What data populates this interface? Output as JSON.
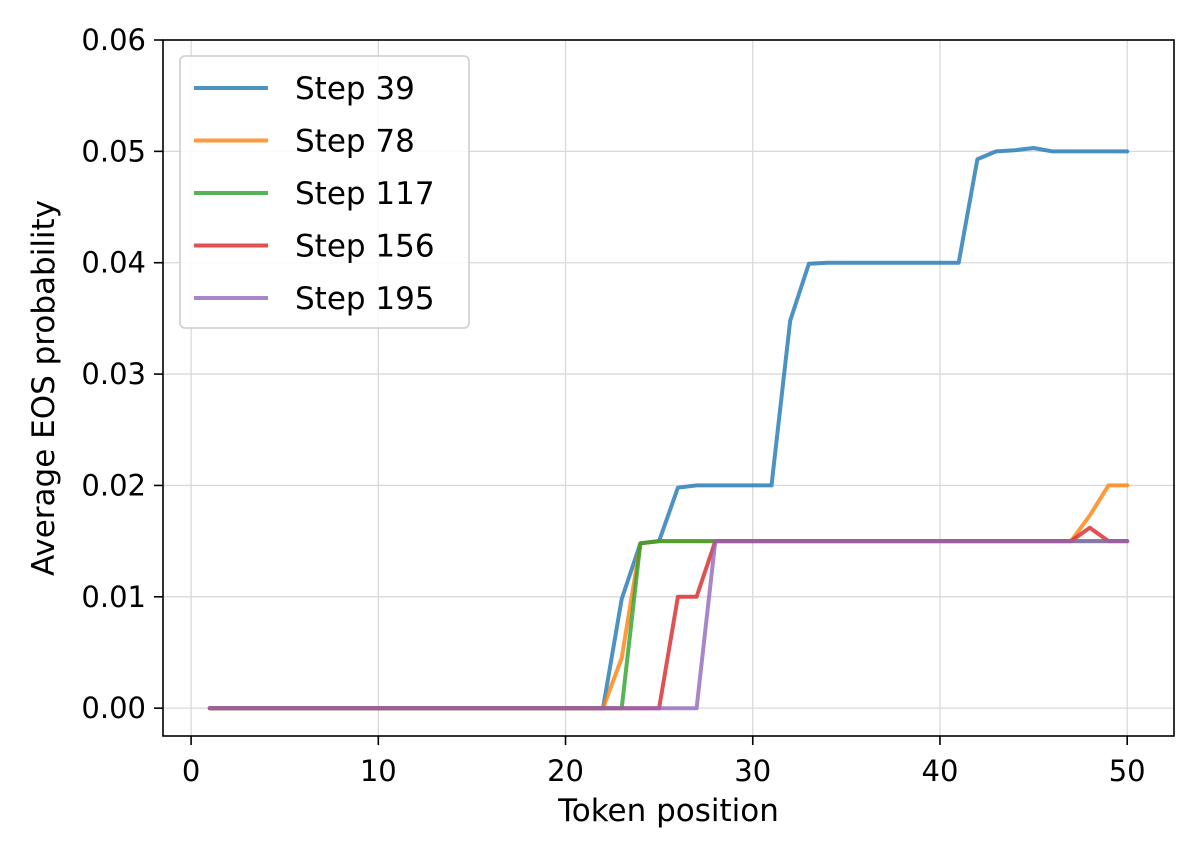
{
  "chart_data": {
    "type": "line",
    "title": "",
    "xlabel": "Token position",
    "ylabel": "Average EOS probability",
    "xlim": [
      -1.5,
      52.5
    ],
    "ylim": [
      -0.0025,
      0.06
    ],
    "xticks": [
      0,
      10,
      20,
      30,
      40,
      50
    ],
    "xtick_labels": [
      "0",
      "10",
      "20",
      "30",
      "40",
      "50"
    ],
    "yticks": [
      0.0,
      0.01,
      0.02,
      0.03,
      0.04,
      0.05,
      0.06
    ],
    "ytick_labels": [
      "0.00",
      "0.01",
      "0.02",
      "0.03",
      "0.04",
      "0.05",
      "0.06"
    ],
    "grid": true,
    "legend_position": "top-left",
    "series": [
      {
        "name": "Step 39",
        "color": "#1f77b4",
        "points": [
          [
            1,
            0
          ],
          [
            22,
            0
          ],
          [
            23,
            0.0098
          ],
          [
            24,
            0.0148
          ],
          [
            25,
            0.015
          ],
          [
            26,
            0.0198
          ],
          [
            27,
            0.02
          ],
          [
            31,
            0.02
          ],
          [
            32,
            0.0348
          ],
          [
            33,
            0.0399
          ],
          [
            34,
            0.04
          ],
          [
            41,
            0.04
          ],
          [
            42,
            0.0493
          ],
          [
            43,
            0.05
          ],
          [
            44,
            0.0501
          ],
          [
            45,
            0.0503
          ],
          [
            46,
            0.05
          ],
          [
            50,
            0.05
          ]
        ]
      },
      {
        "name": "Step 78",
        "color": "#ff7f0e",
        "points": [
          [
            1,
            0
          ],
          [
            22,
            0
          ],
          [
            23,
            0.0045
          ],
          [
            24,
            0.0148
          ],
          [
            25,
            0.015
          ],
          [
            47,
            0.015
          ],
          [
            48,
            0.0173
          ],
          [
            49,
            0.02
          ],
          [
            50,
            0.02
          ]
        ]
      },
      {
        "name": "Step 117",
        "color": "#2ca02c",
        "points": [
          [
            1,
            0
          ],
          [
            23,
            0
          ],
          [
            24,
            0.0148
          ],
          [
            25,
            0.015
          ],
          [
            50,
            0.015
          ]
        ]
      },
      {
        "name": "Step 156",
        "color": "#d62728",
        "points": [
          [
            1,
            0
          ],
          [
            25,
            0
          ],
          [
            26,
            0.01
          ],
          [
            27,
            0.01
          ],
          [
            28,
            0.015
          ],
          [
            47,
            0.015
          ],
          [
            48,
            0.0162
          ],
          [
            49,
            0.015
          ],
          [
            50,
            0.015
          ]
        ]
      },
      {
        "name": "Step 195",
        "color": "#9467bd",
        "points": [
          [
            1,
            0
          ],
          [
            27,
            0
          ],
          [
            28,
            0.015
          ],
          [
            50,
            0.015
          ]
        ]
      }
    ]
  }
}
